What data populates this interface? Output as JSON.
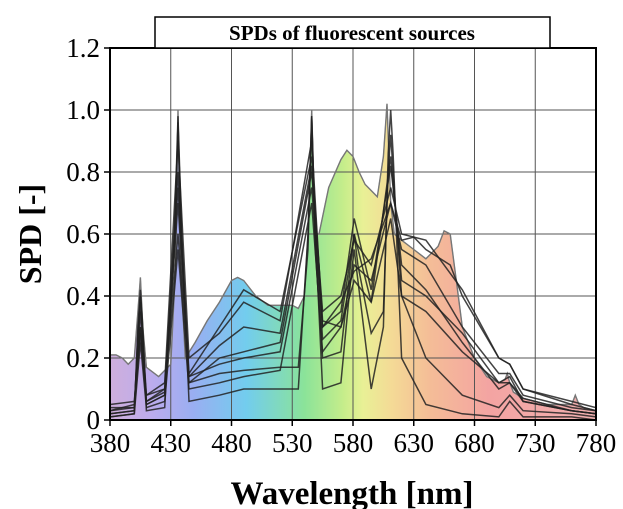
{
  "chart_data": {
    "type": "line",
    "title": "SPDs of fluorescent sources",
    "xlabel": "Wavelength [nm]",
    "ylabel": "SPD [-]",
    "xlim": [
      380,
      780
    ],
    "ylim": [
      0,
      1.2
    ],
    "xticks": [
      380,
      430,
      480,
      530,
      580,
      630,
      680,
      730,
      780
    ],
    "yticks": [
      0,
      0.2,
      0.4,
      0.6,
      0.8,
      1.0,
      1.2
    ],
    "ytick_labels": [
      "0",
      "0.2",
      "0.4",
      "0.6",
      "0.8",
      "1.0",
      "1.2"
    ],
    "grid": true,
    "fill": "spectrum",
    "line_color": "#222222",
    "envelope": {
      "x": [
        380,
        385,
        390,
        395,
        400,
        403,
        405,
        407,
        410,
        420,
        430,
        434,
        436,
        438,
        442,
        450,
        460,
        470,
        480,
        485,
        490,
        500,
        510,
        520,
        530,
        535,
        540,
        543,
        546,
        549,
        552,
        560,
        570,
        575,
        580,
        585,
        590,
        600,
        605,
        608,
        611,
        614,
        620,
        630,
        640,
        650,
        655,
        660,
        665,
        670,
        680,
        690,
        700,
        705,
        707,
        709,
        712,
        720,
        730,
        740,
        750,
        760,
        763,
        766,
        770,
        780
      ],
      "y": [
        0.21,
        0.21,
        0.2,
        0.18,
        0.2,
        0.35,
        0.46,
        0.3,
        0.17,
        0.14,
        0.18,
        0.5,
        1.0,
        0.5,
        0.2,
        0.25,
        0.32,
        0.38,
        0.45,
        0.46,
        0.45,
        0.4,
        0.37,
        0.37,
        0.37,
        0.36,
        0.4,
        0.6,
        1.0,
        0.6,
        0.6,
        0.75,
        0.84,
        0.87,
        0.85,
        0.8,
        0.76,
        0.72,
        0.85,
        1.02,
        0.7,
        0.6,
        0.58,
        0.55,
        0.52,
        0.56,
        0.61,
        0.6,
        0.45,
        0.3,
        0.2,
        0.14,
        0.12,
        0.13,
        0.15,
        0.12,
        0.09,
        0.07,
        0.06,
        0.05,
        0.05,
        0.05,
        0.08,
        0.05,
        0.04,
        0.03
      ]
    },
    "series": [
      {
        "x": [
          380,
          400,
          403,
          405,
          407,
          410,
          425,
          433,
          436,
          439,
          445,
          470,
          490,
          520,
          535,
          543,
          546,
          549,
          555,
          570,
          578,
          581,
          584,
          595,
          605,
          609,
          611,
          613,
          620,
          640,
          670,
          700,
          709,
          720,
          760,
          780
        ],
        "y": [
          0.01,
          0.02,
          0.3,
          0.42,
          0.3,
          0.03,
          0.04,
          0.6,
          0.98,
          0.6,
          0.06,
          0.08,
          0.1,
          0.1,
          0.1,
          0.6,
          0.98,
          0.6,
          0.1,
          0.12,
          0.45,
          0.55,
          0.45,
          0.1,
          0.3,
          0.86,
          1.0,
          0.86,
          0.2,
          0.05,
          0.02,
          0.01,
          0.06,
          0.01,
          0.01,
          0.0
        ]
      },
      {
        "x": [
          380,
          400,
          403,
          405,
          407,
          410,
          425,
          433,
          436,
          439,
          445,
          470,
          490,
          520,
          535,
          543,
          546,
          549,
          555,
          570,
          578,
          581,
          584,
          595,
          605,
          609,
          611,
          613,
          620,
          640,
          670,
          700,
          709,
          720,
          760,
          780
        ],
        "y": [
          0.02,
          0.03,
          0.28,
          0.4,
          0.28,
          0.05,
          0.08,
          0.55,
          0.96,
          0.55,
          0.12,
          0.15,
          0.16,
          0.17,
          0.17,
          0.55,
          0.98,
          0.55,
          0.2,
          0.22,
          0.5,
          0.6,
          0.5,
          0.28,
          0.35,
          0.8,
          0.92,
          0.8,
          0.4,
          0.2,
          0.08,
          0.04,
          0.08,
          0.03,
          0.02,
          0.01
        ]
      },
      {
        "x": [
          380,
          400,
          405,
          410,
          425,
          436,
          445,
          470,
          490,
          520,
          546,
          555,
          570,
          581,
          595,
          611,
          620,
          640,
          670,
          700,
          709,
          720,
          760,
          780
        ],
        "y": [
          0.03,
          0.05,
          0.38,
          0.08,
          0.12,
          0.9,
          0.2,
          0.28,
          0.38,
          0.32,
          0.9,
          0.3,
          0.35,
          0.65,
          0.42,
          0.82,
          0.5,
          0.42,
          0.25,
          0.1,
          0.12,
          0.06,
          0.03,
          0.02
        ]
      },
      {
        "x": [
          380,
          400,
          405,
          410,
          425,
          436,
          445,
          470,
          490,
          520,
          546,
          555,
          570,
          581,
          595,
          611,
          620,
          640,
          670,
          700,
          709,
          720,
          760,
          780
        ],
        "y": [
          0.04,
          0.04,
          0.35,
          0.06,
          0.1,
          0.8,
          0.15,
          0.3,
          0.42,
          0.35,
          0.85,
          0.32,
          0.3,
          0.5,
          0.45,
          0.7,
          0.55,
          0.5,
          0.3,
          0.15,
          0.15,
          0.08,
          0.04,
          0.03
        ]
      },
      {
        "x": [
          380,
          400,
          405,
          410,
          425,
          436,
          445,
          470,
          490,
          520,
          546,
          555,
          570,
          581,
          595,
          611,
          620,
          640,
          670,
          700,
          709,
          720,
          760,
          780
        ],
        "y": [
          0.02,
          0.03,
          0.3,
          0.05,
          0.08,
          0.7,
          0.12,
          0.2,
          0.22,
          0.25,
          0.8,
          0.35,
          0.4,
          0.58,
          0.5,
          0.75,
          0.6,
          0.58,
          0.42,
          0.2,
          0.18,
          0.1,
          0.05,
          0.03
        ]
      },
      {
        "x": [
          380,
          400,
          405,
          410,
          425,
          436,
          445,
          470,
          490,
          520,
          546,
          555,
          570,
          581,
          595,
          611,
          620,
          630,
          640,
          660,
          670,
          700,
          709,
          720,
          760,
          780
        ],
        "y": [
          0.05,
          0.06,
          0.3,
          0.08,
          0.1,
          0.6,
          0.14,
          0.18,
          0.2,
          0.22,
          0.75,
          0.3,
          0.38,
          0.48,
          0.52,
          0.7,
          0.58,
          0.59,
          0.55,
          0.5,
          0.4,
          0.2,
          0.18,
          0.1,
          0.06,
          0.04
        ]
      },
      {
        "x": [
          380,
          400,
          405,
          410,
          425,
          436,
          445,
          470,
          490,
          520,
          546,
          555,
          570,
          581,
          595,
          611,
          620,
          640,
          670,
          700,
          709,
          720,
          760,
          780
        ],
        "y": [
          0.01,
          0.02,
          0.25,
          0.04,
          0.06,
          0.55,
          0.1,
          0.12,
          0.14,
          0.16,
          0.7,
          0.22,
          0.3,
          0.45,
          0.38,
          0.65,
          0.4,
          0.35,
          0.22,
          0.12,
          0.14,
          0.06,
          0.03,
          0.02
        ]
      },
      {
        "x": [
          380,
          400,
          405,
          410,
          425,
          436,
          445,
          470,
          490,
          520,
          546,
          555,
          570,
          581,
          595,
          611,
          620,
          640,
          670,
          700,
          709,
          720,
          760,
          780
        ],
        "y": [
          0.03,
          0.04,
          0.28,
          0.06,
          0.09,
          0.75,
          0.14,
          0.24,
          0.3,
          0.28,
          0.82,
          0.26,
          0.32,
          0.6,
          0.38,
          0.85,
          0.45,
          0.4,
          0.28,
          0.12,
          0.12,
          0.07,
          0.03,
          0.02
        ]
      }
    ]
  }
}
